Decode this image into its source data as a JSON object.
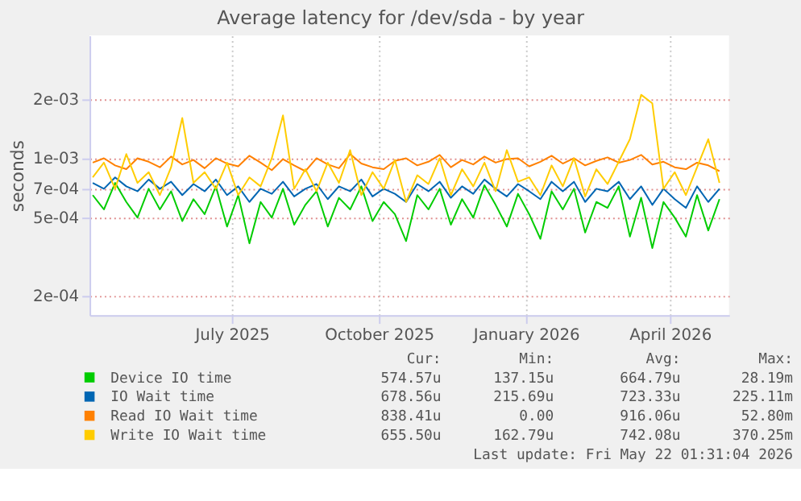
{
  "chart_data": {
    "type": "line",
    "title": "Average latency for /dev/sda - by year",
    "ylabel": "seconds",
    "log": "y",
    "grid": true,
    "legend": "bottom",
    "line_style": "solid",
    "marker": "none",
    "xlim": [
      "2025-04-17",
      "2026-05-22"
    ],
    "xticks": [
      {
        "value": "2025-07-15",
        "label": "July 2025"
      },
      {
        "value": "2025-10-15",
        "label": "October 2025"
      },
      {
        "value": "2026-01-15",
        "label": "January 2026"
      },
      {
        "value": "2026-04-15",
        "label": "April 2026"
      }
    ],
    "ylim": [
      0.00016,
      0.0042
    ],
    "yticks": [
      {
        "value": 0.0002,
        "label": "2e-04"
      },
      {
        "value": 0.0005,
        "label": "5e-04"
      },
      {
        "value": 0.0007,
        "label": "7e-04"
      },
      {
        "value": 0.001,
        "label": "1e-03"
      },
      {
        "value": 0.002,
        "label": "2e-03"
      }
    ],
    "x": [
      "2025-04-19",
      "2025-04-26",
      "2025-05-03",
      "2025-05-10",
      "2025-05-17",
      "2025-05-24",
      "2025-05-31",
      "2025-06-07",
      "2025-06-14",
      "2025-06-21",
      "2025-06-28",
      "2025-07-05",
      "2025-07-12",
      "2025-07-19",
      "2025-07-26",
      "2025-08-02",
      "2025-08-09",
      "2025-08-16",
      "2025-08-23",
      "2025-08-30",
      "2025-09-06",
      "2025-09-13",
      "2025-09-20",
      "2025-09-27",
      "2025-10-04",
      "2025-10-11",
      "2025-10-18",
      "2025-10-25",
      "2025-11-01",
      "2025-11-08",
      "2025-11-15",
      "2025-11-22",
      "2025-11-29",
      "2025-12-06",
      "2025-12-13",
      "2025-12-20",
      "2025-12-27",
      "2026-01-03",
      "2026-01-10",
      "2026-01-17",
      "2026-01-24",
      "2026-01-31",
      "2026-02-07",
      "2026-02-14",
      "2026-02-21",
      "2026-02-28",
      "2026-03-07",
      "2026-03-14",
      "2026-03-21",
      "2026-03-28",
      "2026-04-04",
      "2026-04-11",
      "2026-04-18",
      "2026-04-25",
      "2026-05-02",
      "2026-05-09",
      "2026-05-16"
    ],
    "series": [
      {
        "name": "Device IO time",
        "color": "#00cc00",
        "values": [
          0.00065,
          0.00055,
          0.00075,
          0.0006,
          0.0005,
          0.0007,
          0.00055,
          0.00068,
          0.00048,
          0.00062,
          0.00052,
          0.00072,
          0.00045,
          0.00065,
          0.00037,
          0.0006,
          0.0005,
          0.0007,
          0.00046,
          0.00058,
          0.00068,
          0.00045,
          0.00063,
          0.00055,
          0.00072,
          0.00048,
          0.0006,
          0.00052,
          0.00038,
          0.00065,
          0.00055,
          0.0007,
          0.00046,
          0.00062,
          0.0005,
          0.00073,
          0.00058,
          0.00045,
          0.00066,
          0.00052,
          0.00039,
          0.00068,
          0.00055,
          0.0007,
          0.00042,
          0.0006,
          0.00056,
          0.00072,
          0.0004,
          0.00063,
          0.00035,
          0.0006,
          0.0005,
          0.0004,
          0.00065,
          0.00043,
          0.00062
        ]
      },
      {
        "name": "IO Wait time",
        "color": "#0066b3",
        "values": [
          0.00075,
          0.0007,
          0.0008,
          0.00072,
          0.00068,
          0.00078,
          0.0007,
          0.00076,
          0.00065,
          0.00074,
          0.00068,
          0.00078,
          0.00065,
          0.00072,
          0.0006,
          0.0007,
          0.00066,
          0.00076,
          0.00064,
          0.0007,
          0.00074,
          0.00062,
          0.00072,
          0.00068,
          0.00078,
          0.00064,
          0.0007,
          0.00066,
          0.0006,
          0.00074,
          0.00068,
          0.00076,
          0.00063,
          0.00072,
          0.00066,
          0.00078,
          0.0007,
          0.00064,
          0.00074,
          0.00068,
          0.00062,
          0.00076,
          0.00068,
          0.00076,
          0.0006,
          0.0007,
          0.00068,
          0.00076,
          0.00062,
          0.00072,
          0.00058,
          0.0007,
          0.00062,
          0.00056,
          0.00072,
          0.0006,
          0.0007
        ]
      },
      {
        "name": "Read IO Wait time",
        "color": "#ff8000",
        "values": [
          0.00095,
          0.001,
          0.00092,
          0.00088,
          0.001,
          0.00096,
          0.0009,
          0.00102,
          0.00093,
          0.00098,
          0.00089,
          0.001,
          0.00094,
          0.00091,
          0.00103,
          0.00095,
          0.00087,
          0.00099,
          0.00092,
          0.00086,
          0.001,
          0.00093,
          0.00089,
          0.00105,
          0.00094,
          0.0009,
          0.00088,
          0.00097,
          0.001,
          0.00092,
          0.00096,
          0.00104,
          0.0009,
          0.00098,
          0.00093,
          0.00102,
          0.00095,
          0.00099,
          0.001,
          0.00091,
          0.00096,
          0.00103,
          0.00094,
          0.001,
          0.00092,
          0.00097,
          0.00101,
          0.00095,
          0.00098,
          0.00104,
          0.00093,
          0.00096,
          0.0009,
          0.00088,
          0.00095,
          0.00092,
          0.00086
        ]
      },
      {
        "name": "Write IO Wait time",
        "color": "#ffcc00",
        "values": [
          0.0008,
          0.00095,
          0.0007,
          0.00105,
          0.00075,
          0.00085,
          0.00065,
          0.0009,
          0.0016,
          0.00075,
          0.00085,
          0.0007,
          0.00095,
          0.00065,
          0.0008,
          0.00072,
          0.001,
          0.00165,
          0.0007,
          0.00088,
          0.00068,
          0.00095,
          0.00075,
          0.0011,
          0.00065,
          0.00085,
          0.0007,
          0.00098,
          0.0006,
          0.00082,
          0.00074,
          0.001,
          0.00065,
          0.00088,
          0.00072,
          0.00095,
          0.00068,
          0.0011,
          0.00076,
          0.0008,
          0.00065,
          0.00092,
          0.00072,
          0.001,
          0.00064,
          0.00088,
          0.00074,
          0.00096,
          0.00125,
          0.0021,
          0.0019,
          0.0007,
          0.00085,
          0.00065,
          0.0009,
          0.00125,
          0.00075
        ]
      }
    ],
    "annotations": [
      "Cur:",
      "Min:",
      "Avg:",
      "Max:",
      "574.57u",
      "137.15u",
      "664.79u",
      "28.19m",
      "678.56u",
      "215.69u",
      "723.33u",
      "225.11m",
      "838.41u",
      "0.00",
      "916.06u",
      "52.80m",
      "655.50u",
      "162.79u",
      "742.08u",
      "370.25m",
      "Last update: Fri May 22 01:31:04 2026"
    ]
  }
}
